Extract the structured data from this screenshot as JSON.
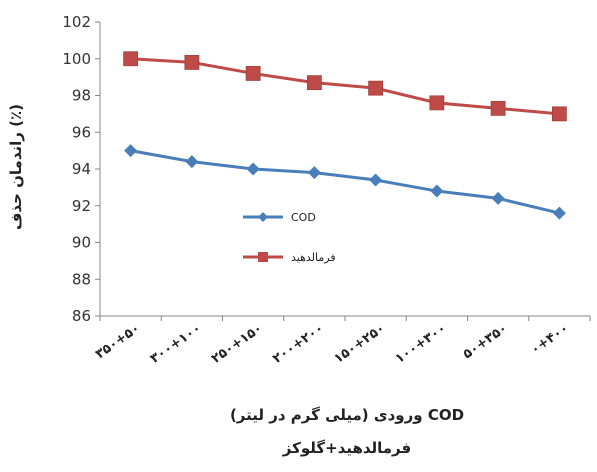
{
  "chart_data": {
    "type": "line",
    "categories": [
      "۳۵۰+۵۰",
      "۳۰۰+۱۰۰",
      "۲۵۰+۱۵۰",
      "۲۰۰+۲۰۰",
      "۱۵۰+۲۵۰",
      "۱۰۰+۳۰۰",
      "۵۰+۳۵۰",
      "۰+۴۰۰"
    ],
    "series": [
      {
        "name": "COD",
        "values": [
          95.0,
          94.4,
          94.0,
          93.8,
          93.4,
          92.8,
          92.4,
          91.6
        ],
        "color": "#4A7EBB",
        "marker": "diamond"
      },
      {
        "name": "فرمالدهید",
        "values": [
          100.0,
          99.8,
          99.2,
          98.7,
          98.4,
          97.6,
          97.3,
          97.0
        ],
        "color": "#BE4B48",
        "marker": "square"
      }
    ],
    "ylabel": "راندمان حذف (٪)",
    "xlabel": "COD ورودی (میلی گرم در لیتر)",
    "xlabel2": "فرمالدهید+گلوکز",
    "ylim": [
      86,
      102
    ],
    "yticks": [
      "86",
      "88",
      "90",
      "92",
      "94",
      "96",
      "98",
      "100",
      "102"
    ],
    "grid": false,
    "legend_position": "center-left"
  }
}
